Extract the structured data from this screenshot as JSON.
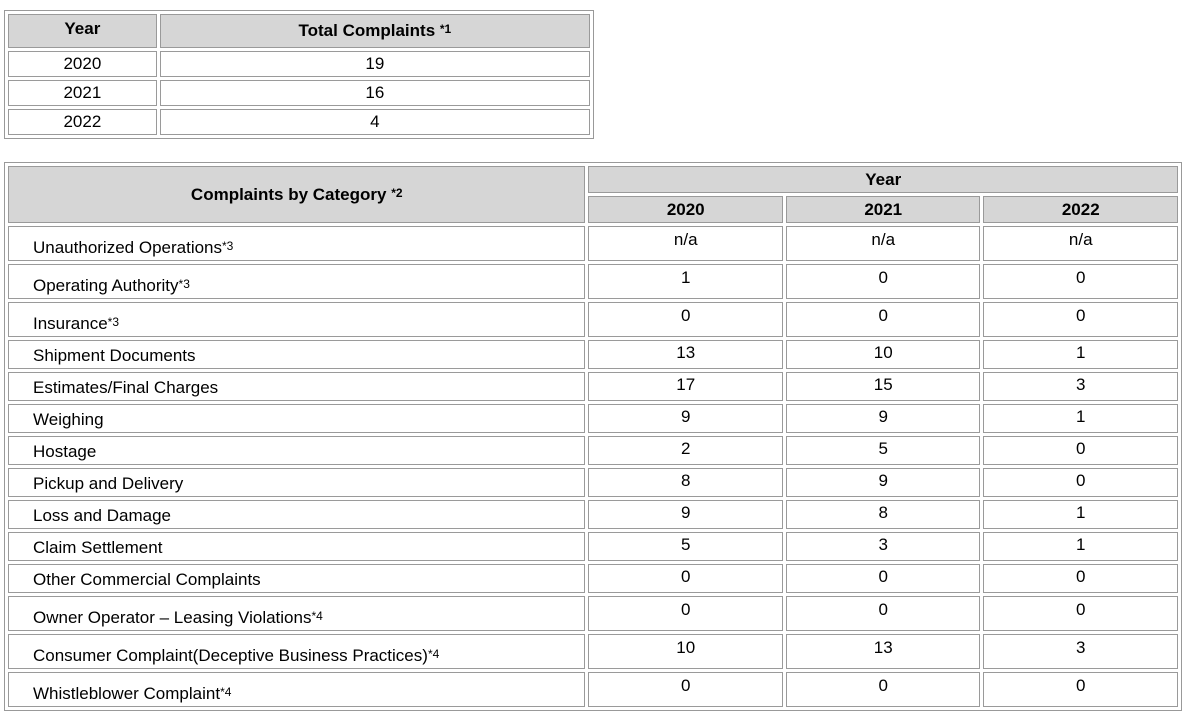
{
  "summary_table": {
    "headers": {
      "year": "Year",
      "total": "Total Complaints",
      "total_note": "*1"
    },
    "rows": [
      {
        "year": "2020",
        "total": "19"
      },
      {
        "year": "2021",
        "total": "16"
      },
      {
        "year": "2022",
        "total": "4"
      }
    ]
  },
  "category_table": {
    "headers": {
      "category": "Complaints by Category",
      "category_note": "*2",
      "year": "Year",
      "years": [
        "2020",
        "2021",
        "2022"
      ]
    },
    "rows": [
      {
        "label": "Unauthorized Operations",
        "note": "*3",
        "values": [
          "n/a",
          "n/a",
          "n/a"
        ]
      },
      {
        "label": "Operating Authority",
        "note": "*3",
        "values": [
          "1",
          "0",
          "0"
        ]
      },
      {
        "label": "Insurance",
        "note": "*3",
        "values": [
          "0",
          "0",
          "0"
        ]
      },
      {
        "label": "Shipment Documents",
        "note": "",
        "values": [
          "13",
          "10",
          "1"
        ]
      },
      {
        "label": "Estimates/Final Charges",
        "note": "",
        "values": [
          "17",
          "15",
          "3"
        ]
      },
      {
        "label": "Weighing",
        "note": "",
        "values": [
          "9",
          "9",
          "1"
        ]
      },
      {
        "label": "Hostage",
        "note": "",
        "values": [
          "2",
          "5",
          "0"
        ]
      },
      {
        "label": "Pickup and Delivery",
        "note": "",
        "values": [
          "8",
          "9",
          "0"
        ]
      },
      {
        "label": "Loss and Damage",
        "note": "",
        "values": [
          "9",
          "8",
          "1"
        ]
      },
      {
        "label": "Claim Settlement",
        "note": "",
        "values": [
          "5",
          "3",
          "1"
        ]
      },
      {
        "label": "Other Commercial Complaints",
        "note": "",
        "values": [
          "0",
          "0",
          "0"
        ]
      },
      {
        "label": "Owner Operator – Leasing Violations",
        "note": "*4",
        "values": [
          "0",
          "0",
          "0"
        ]
      },
      {
        "label": "Consumer Complaint(Deceptive Business Practices)",
        "note": "*4",
        "values": [
          "10",
          "13",
          "3"
        ]
      },
      {
        "label": "Whistleblower Complaint",
        "note": "*4",
        "values": [
          "0",
          "0",
          "0"
        ]
      }
    ]
  }
}
